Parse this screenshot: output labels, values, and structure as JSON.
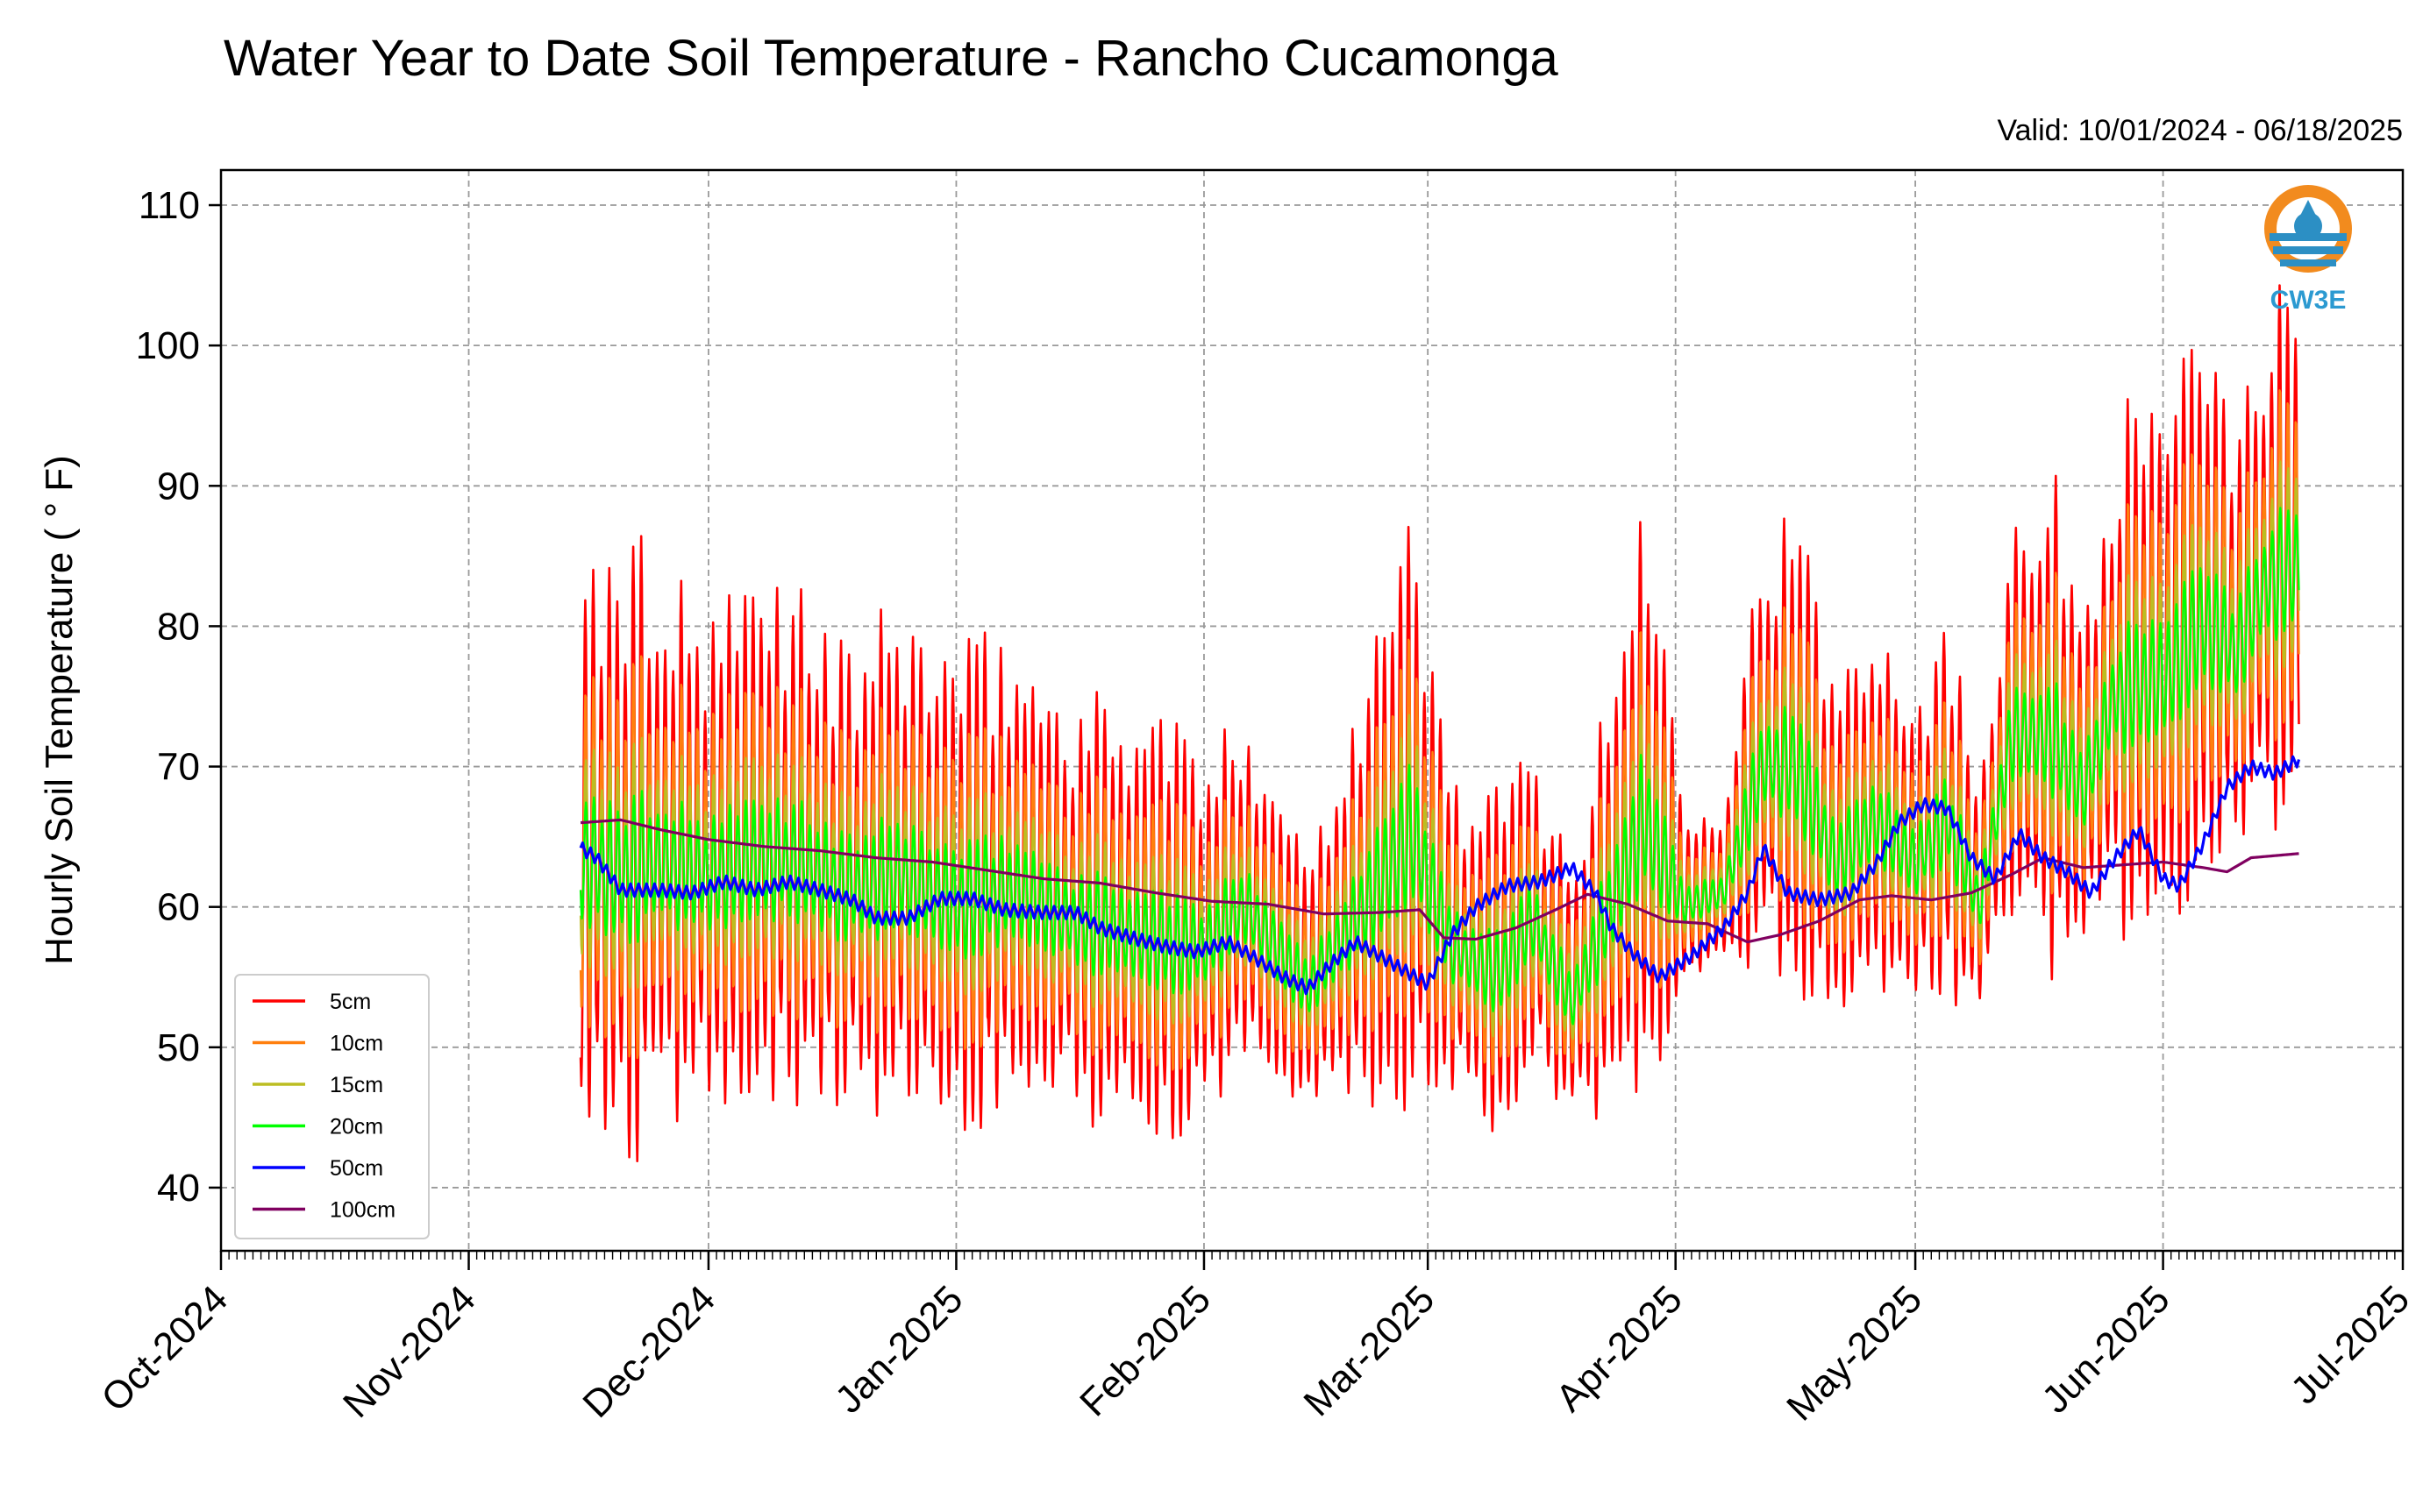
{
  "chart_data": {
    "type": "line",
    "title": "Water Year to Date Soil Temperature - Rancho Cucamonga",
    "subtitle": "Valid: 10/01/2024 - 06/18/2025",
    "ylabel": "Hourly Soil Temperature ( ° F)",
    "xlabel": "",
    "xlim": [
      "2024-10-01",
      "2025-07-01"
    ],
    "ylim": [
      35.5,
      112.5
    ],
    "yticks": [
      40,
      50,
      60,
      70,
      80,
      90,
      100,
      110
    ],
    "xticks": [
      {
        "date": "2024-10-01",
        "label": "Oct-2024"
      },
      {
        "date": "2024-11-01",
        "label": "Nov-2024"
      },
      {
        "date": "2024-12-01",
        "label": "Dec-2024"
      },
      {
        "date": "2025-01-01",
        "label": "Jan-2025"
      },
      {
        "date": "2025-02-01",
        "label": "Feb-2025"
      },
      {
        "date": "2025-03-01",
        "label": "Mar-2025"
      },
      {
        "date": "2025-04-01",
        "label": "Apr-2025"
      },
      {
        "date": "2025-05-01",
        "label": "May-2025"
      },
      {
        "date": "2025-06-01",
        "label": "Jun-2025"
      },
      {
        "date": "2025-07-01",
        "label": "Jul-2025"
      }
    ],
    "grid": true,
    "legend": "lower-left",
    "logo_text": "CW3E",
    "series_note_type": "hourly diurnal series described by daily mean and diurnal amplitude per depth",
    "daily_mean_5cm": [
      [
        "2024-11-15",
        63
      ],
      [
        "2024-11-20",
        62
      ],
      [
        "2024-11-25",
        63
      ],
      [
        "2024-12-01",
        62
      ],
      [
        "2024-12-06",
        63
      ],
      [
        "2024-12-12",
        63
      ],
      [
        "2024-12-18",
        61
      ],
      [
        "2024-12-25",
        62
      ],
      [
        "2025-01-01",
        60
      ],
      [
        "2025-01-08",
        61
      ],
      [
        "2025-01-15",
        59
      ],
      [
        "2025-01-22",
        58
      ],
      [
        "2025-01-29",
        57
      ],
      [
        "2025-02-01",
        57
      ],
      [
        "2025-02-06",
        60
      ],
      [
        "2025-02-10",
        57
      ],
      [
        "2025-02-14",
        54
      ],
      [
        "2025-02-20",
        59
      ],
      [
        "2025-02-27",
        65
      ],
      [
        "2025-03-04",
        57
      ],
      [
        "2025-03-10",
        55
      ],
      [
        "2025-03-14",
        59
      ],
      [
        "2025-03-19",
        53
      ],
      [
        "2025-03-24",
        60
      ],
      [
        "2025-03-28",
        66
      ],
      [
        "2025-04-02",
        60
      ],
      [
        "2025-04-07",
        61
      ],
      [
        "2025-04-12",
        70
      ],
      [
        "2025-04-16",
        70
      ],
      [
        "2025-04-21",
        63
      ],
      [
        "2025-04-26",
        66
      ],
      [
        "2025-05-01",
        63
      ],
      [
        "2025-05-05",
        66
      ],
      [
        "2025-05-09",
        60
      ],
      [
        "2025-05-13",
        72
      ],
      [
        "2025-05-18",
        72
      ],
      [
        "2025-05-22",
        68
      ],
      [
        "2025-05-26",
        75
      ],
      [
        "2025-06-01",
        76
      ],
      [
        "2025-06-06",
        80
      ],
      [
        "2025-06-10",
        78
      ],
      [
        "2025-06-14",
        83
      ],
      [
        "2025-06-18",
        84
      ]
    ],
    "diurnal_amplitude_5cm": [
      [
        "2024-11-15",
        16
      ],
      [
        "2024-11-20",
        20
      ],
      [
        "2024-11-25",
        18
      ],
      [
        "2024-12-01",
        14
      ],
      [
        "2024-12-06",
        17
      ],
      [
        "2024-12-12",
        17
      ],
      [
        "2024-12-18",
        14
      ],
      [
        "2024-12-25",
        16
      ],
      [
        "2025-01-01",
        15
      ],
      [
        "2025-01-08",
        15
      ],
      [
        "2025-01-15",
        13
      ],
      [
        "2025-01-22",
        14
      ],
      [
        "2025-01-29",
        14
      ],
      [
        "2025-02-01",
        10
      ],
      [
        "2025-02-06",
        12
      ],
      [
        "2025-02-10",
        11
      ],
      [
        "2025-02-14",
        8
      ],
      [
        "2025-02-20",
        14
      ],
      [
        "2025-02-27",
        19
      ],
      [
        "2025-03-04",
        10
      ],
      [
        "2025-03-10",
        11
      ],
      [
        "2025-03-14",
        10
      ],
      [
        "2025-03-19",
        9
      ],
      [
        "2025-03-24",
        13
      ],
      [
        "2025-03-28",
        21
      ],
      [
        "2025-04-02",
        7
      ],
      [
        "2025-04-07",
        6
      ],
      [
        "2025-04-12",
        14
      ],
      [
        "2025-04-16",
        15
      ],
      [
        "2025-04-21",
        11
      ],
      [
        "2025-04-26",
        14
      ],
      [
        "2025-05-01",
        10
      ],
      [
        "2025-05-05",
        12
      ],
      [
        "2025-05-09",
        8
      ],
      [
        "2025-05-13",
        14
      ],
      [
        "2025-05-18",
        16
      ],
      [
        "2025-05-22",
        11
      ],
      [
        "2025-05-26",
        16
      ],
      [
        "2025-06-01",
        19
      ],
      [
        "2025-06-06",
        16
      ],
      [
        "2025-06-10",
        14
      ],
      [
        "2025-06-14",
        17
      ],
      [
        "2025-06-18",
        17
      ]
    ],
    "depth_factors": {
      "5cm": 1.0,
      "10cm": 0.66,
      "15cm": 0.4,
      "20cm": 0.24
    },
    "series": [
      {
        "name": "5cm",
        "color": "#ff0000",
        "kind": "diurnal",
        "start": "2024-11-15",
        "end": "2025-06-18"
      },
      {
        "name": "10cm",
        "color": "#ff7f0e",
        "kind": "diurnal",
        "start": "2024-11-15",
        "end": "2025-06-18"
      },
      {
        "name": "15cm",
        "color": "#bcbd22",
        "kind": "diurnal",
        "start": "2024-11-15",
        "end": "2025-06-18"
      },
      {
        "name": "20cm",
        "color": "#00ff00",
        "kind": "diurnal",
        "start": "2024-11-15",
        "end": "2025-06-18"
      },
      {
        "name": "50cm",
        "color": "#0000ff",
        "kind": "smooth",
        "points": [
          [
            "2024-11-15",
            64.2
          ],
          [
            "2024-11-17",
            63.5
          ],
          [
            "2024-11-20",
            61.2
          ],
          [
            "2024-11-25",
            61.2
          ],
          [
            "2024-11-29",
            61.0
          ],
          [
            "2024-12-03",
            61.8
          ],
          [
            "2024-12-07",
            61.2
          ],
          [
            "2024-12-11",
            61.8
          ],
          [
            "2024-12-15",
            61.2
          ],
          [
            "2024-12-19",
            60.5
          ],
          [
            "2024-12-22",
            59.2
          ],
          [
            "2024-12-26",
            59.2
          ],
          [
            "2024-12-30",
            60.6
          ],
          [
            "2025-01-03",
            60.6
          ],
          [
            "2025-01-07",
            59.8
          ],
          [
            "2025-01-12",
            59.6
          ],
          [
            "2025-01-16",
            59.6
          ],
          [
            "2025-01-19",
            58.5
          ],
          [
            "2025-01-23",
            57.8
          ],
          [
            "2025-01-27",
            57.2
          ],
          [
            "2025-01-31",
            56.8
          ],
          [
            "2025-02-04",
            57.5
          ],
          [
            "2025-02-07",
            56.5
          ],
          [
            "2025-02-11",
            55.0
          ],
          [
            "2025-02-14",
            54.2
          ],
          [
            "2025-02-17",
            56.0
          ],
          [
            "2025-02-20",
            57.5
          ],
          [
            "2025-02-23",
            56.5
          ],
          [
            "2025-02-26",
            55.5
          ],
          [
            "2025-03-01",
            54.5
          ],
          [
            "2025-03-04",
            58.0
          ],
          [
            "2025-03-07",
            60.0
          ],
          [
            "2025-03-11",
            61.5
          ],
          [
            "2025-03-15",
            61.8
          ],
          [
            "2025-03-19",
            62.8
          ],
          [
            "2025-03-22",
            61.0
          ],
          [
            "2025-03-24",
            58.5
          ],
          [
            "2025-03-27",
            56.5
          ],
          [
            "2025-03-30",
            55.0
          ],
          [
            "2025-04-03",
            56.5
          ],
          [
            "2025-04-07",
            58.5
          ],
          [
            "2025-04-10",
            61.0
          ],
          [
            "2025-04-12",
            64.2
          ],
          [
            "2025-04-15",
            61.0
          ],
          [
            "2025-04-19",
            60.5
          ],
          [
            "2025-04-23",
            61.0
          ],
          [
            "2025-04-26",
            63.0
          ],
          [
            "2025-04-29",
            66.0
          ],
          [
            "2025-05-02",
            67.3
          ],
          [
            "2025-05-05",
            67.0
          ],
          [
            "2025-05-08",
            63.5
          ],
          [
            "2025-05-11",
            62.0
          ],
          [
            "2025-05-14",
            65.2
          ],
          [
            "2025-05-17",
            63.5
          ],
          [
            "2025-05-20",
            62.5
          ],
          [
            "2025-05-23",
            61.0
          ],
          [
            "2025-05-26",
            63.5
          ],
          [
            "2025-05-29",
            65.5
          ],
          [
            "2025-06-01",
            62.0
          ],
          [
            "2025-06-03",
            61.5
          ],
          [
            "2025-06-06",
            64.5
          ],
          [
            "2025-06-09",
            68.5
          ],
          [
            "2025-06-12",
            70.0
          ],
          [
            "2025-06-15",
            69.5
          ],
          [
            "2025-06-18",
            70.5
          ]
        ]
      },
      {
        "name": "100cm",
        "color": "#800060",
        "kind": "smooth",
        "points": [
          [
            "2024-11-15",
            66.0
          ],
          [
            "2024-11-20",
            66.2
          ],
          [
            "2024-11-25",
            65.5
          ],
          [
            "2024-12-01",
            64.8
          ],
          [
            "2024-12-08",
            64.3
          ],
          [
            "2024-12-15",
            64.0
          ],
          [
            "2024-12-22",
            63.5
          ],
          [
            "2024-12-29",
            63.2
          ],
          [
            "2025-01-05",
            62.6
          ],
          [
            "2025-01-12",
            62.0
          ],
          [
            "2025-01-19",
            61.7
          ],
          [
            "2025-01-26",
            61.0
          ],
          [
            "2025-02-02",
            60.4
          ],
          [
            "2025-02-09",
            60.2
          ],
          [
            "2025-02-16",
            59.5
          ],
          [
            "2025-02-23",
            59.6
          ],
          [
            "2025-02-28",
            59.8
          ],
          [
            "2025-03-03",
            57.8
          ],
          [
            "2025-03-07",
            57.7
          ],
          [
            "2025-03-12",
            58.5
          ],
          [
            "2025-03-17",
            59.8
          ],
          [
            "2025-03-21",
            60.9
          ],
          [
            "2025-03-26",
            60.2
          ],
          [
            "2025-03-31",
            59.0
          ],
          [
            "2025-04-05",
            58.8
          ],
          [
            "2025-04-10",
            57.5
          ],
          [
            "2025-04-14",
            58.0
          ],
          [
            "2025-04-19",
            59.0
          ],
          [
            "2025-04-24",
            60.5
          ],
          [
            "2025-04-28",
            60.8
          ],
          [
            "2025-05-03",
            60.5
          ],
          [
            "2025-05-08",
            61.0
          ],
          [
            "2025-05-13",
            62.3
          ],
          [
            "2025-05-17",
            63.5
          ],
          [
            "2025-05-22",
            62.8
          ],
          [
            "2025-05-27",
            63.0
          ],
          [
            "2025-06-01",
            63.2
          ],
          [
            "2025-06-06",
            62.8
          ],
          [
            "2025-06-09",
            62.5
          ],
          [
            "2025-06-12",
            63.5
          ],
          [
            "2025-06-18",
            63.8
          ]
        ]
      }
    ]
  }
}
